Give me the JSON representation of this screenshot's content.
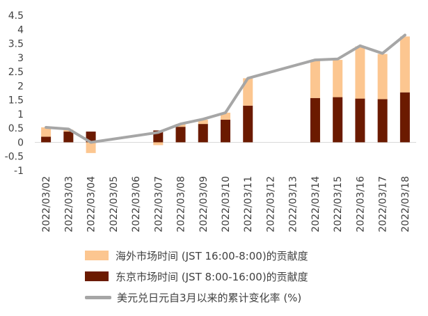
{
  "chart_data": {
    "type": "bar",
    "stacked": true,
    "categories": [
      "2022/03/02",
      "2022/03/03",
      "2022/03/04",
      "2022/03/05",
      "2022/03/06",
      "2022/03/07",
      "2022/03/08",
      "2022/03/09",
      "2022/03/10",
      "2022/03/11",
      "2022/03/12",
      "2022/03/13",
      "2022/03/14",
      "2022/03/15",
      "2022/03/16",
      "2022/03/17",
      "2022/03/18"
    ],
    "series": [
      {
        "name": "东京市场时间 (JST 8:00-16:00)的贡献度",
        "kind": "bar",
        "color": "#6b1a00",
        "values": [
          0.2,
          0.38,
          0.38,
          null,
          null,
          0.42,
          0.55,
          0.65,
          0.8,
          1.3,
          null,
          null,
          1.57,
          1.6,
          1.55,
          1.53,
          1.77
        ]
      },
      {
        "name": "海外市场时间 (JST 16:00-8:00)的贡献度",
        "kind": "bar",
        "color": "#fcc690",
        "values": [
          0.33,
          0.07,
          -0.38,
          null,
          null,
          -0.1,
          0.1,
          0.15,
          0.25,
          0.97,
          null,
          null,
          1.35,
          1.32,
          1.85,
          1.6,
          1.98
        ]
      },
      {
        "name": "美元兑日元自3月以来的累计变化率 (%)",
        "kind": "line",
        "color": "#a6a6a6",
        "values": [
          0.53,
          0.47,
          0.0,
          null,
          null,
          0.35,
          0.65,
          0.82,
          1.05,
          2.27,
          null,
          null,
          2.92,
          2.95,
          3.42,
          3.15,
          3.8
        ]
      }
    ],
    "ylim": [
      -1,
      4.5
    ],
    "yticks": [
      "-1",
      "-0.5",
      "0",
      "0.5",
      "1",
      "1.5",
      "2",
      "2.5",
      "3",
      "3.5",
      "4",
      "4.5"
    ],
    "ytick_values": [
      -1,
      -0.5,
      0,
      0.5,
      1,
      1.5,
      2,
      2.5,
      3,
      3.5,
      4,
      4.5
    ],
    "grid": false,
    "legend_position": "bottom"
  }
}
